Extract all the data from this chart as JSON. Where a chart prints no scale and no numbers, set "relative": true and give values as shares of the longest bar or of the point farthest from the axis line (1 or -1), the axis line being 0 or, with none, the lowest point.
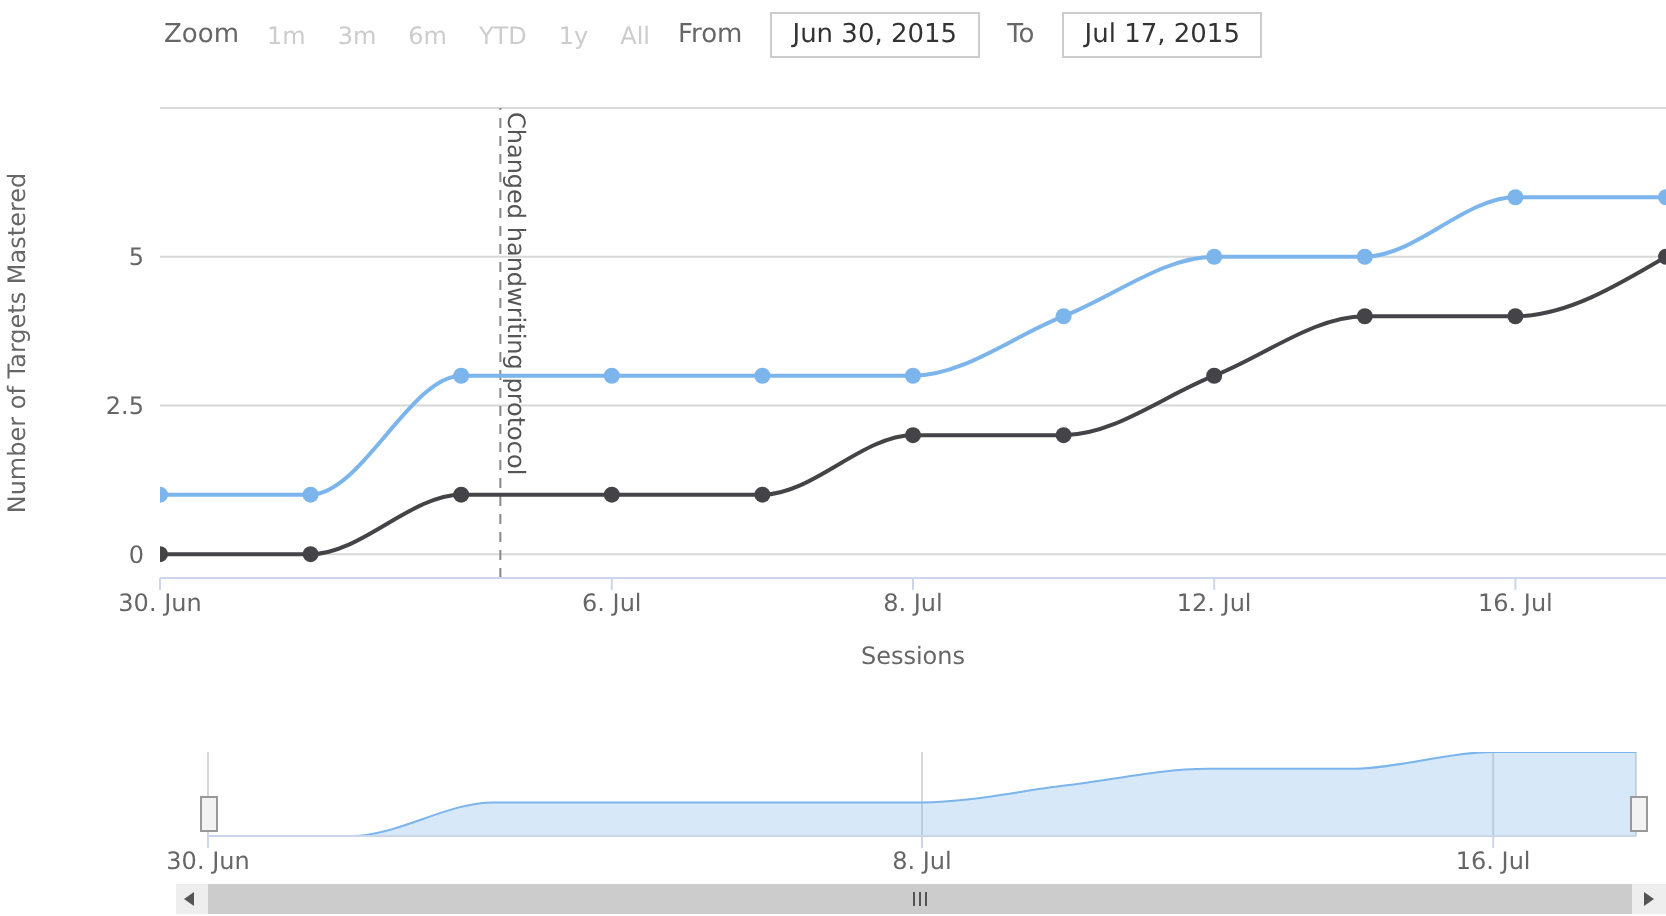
{
  "chart_data": [
    {
      "type": "line",
      "xlabel": "Sessions",
      "ylabel": "Number of Targets Mastered",
      "annotations": [
        "Zoom",
        "1m",
        "3m",
        "6m",
        "YTD",
        "1y",
        "All",
        "From",
        "Jun 30, 2015",
        "To",
        "Jul 17, 2015",
        "Changed handwriting protocol"
      ],
      "categories": [
        "30. Jun",
        null,
        null,
        "6. Jul",
        null,
        "8. Jul",
        null,
        "12. Jul",
        null,
        "16. Jul",
        null
      ],
      "series": [
        {
          "color": "#7cb5ec",
          "values": [
            1,
            1,
            3,
            3,
            3,
            3,
            4,
            5,
            5,
            6,
            6
          ]
        },
        {
          "color": "#434348",
          "values": [
            0,
            0,
            1,
            1,
            1,
            2,
            2,
            3,
            4,
            4,
            5
          ]
        }
      ],
      "ylim": [
        -0.4,
        7.5
      ],
      "yticks": [
        0,
        2.5,
        5,
        {
          "value": 7.5,
          "label": null
        }
      ],
      "grid": "y",
      "legend": false,
      "marker": "circle",
      "line_style": "solid"
    },
    {
      "type": "area",
      "relative": true,
      "categories": [
        "30. Jun",
        null,
        null,
        null,
        null,
        "8. Jul",
        null,
        null,
        null,
        "16. Jul",
        null
      ],
      "series": [
        {
          "color": "#7cb5ec",
          "values": [
            0,
            0,
            0.4,
            0.4,
            0.4,
            0.4,
            0.6,
            0.8,
            0.8,
            1,
            1
          ]
        }
      ],
      "grid": "x",
      "tick_labels": "x",
      "legend": false
    }
  ]
}
